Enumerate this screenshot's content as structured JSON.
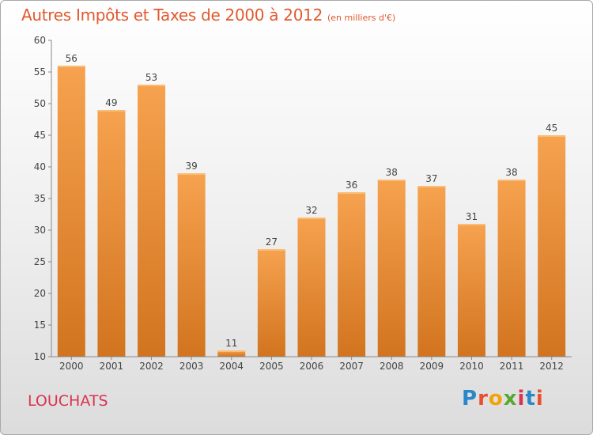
{
  "header": {
    "title": "Autres Impôts et Taxes de 2000 à 2012",
    "subtitle": "(en milliers d'€)"
  },
  "footer": {
    "place": "LOUCHATS",
    "logo_text": "Proxiti",
    "logo_colors": [
      "#2a87c8",
      "#e94f2e",
      "#f2a20a",
      "#5aa732",
      "#d9344f",
      "#2a87c8",
      "#e94f2e"
    ]
  },
  "colors": {
    "bar_top": "#f6a24f",
    "bar_bottom": "#d2741f",
    "bar_cap": "#f9bd78",
    "title": "#e05a2f",
    "place": "#d9344f"
  },
  "chart_data": {
    "type": "bar",
    "categories": [
      "2000",
      "2001",
      "2002",
      "2003",
      "2004",
      "2005",
      "2006",
      "2007",
      "2008",
      "2009",
      "2010",
      "2011",
      "2012"
    ],
    "values": [
      56,
      49,
      53,
      39,
      11,
      27,
      32,
      36,
      38,
      37,
      31,
      38,
      45
    ],
    "title": "Autres Impôts et Taxes de 2000 à 2012",
    "subtitle": "(en milliers d'€)",
    "ylim": [
      10,
      60
    ],
    "yticks": [
      10,
      15,
      20,
      25,
      30,
      35,
      40,
      45,
      50,
      55,
      60
    ],
    "grid": false,
    "data_labels": true
  }
}
